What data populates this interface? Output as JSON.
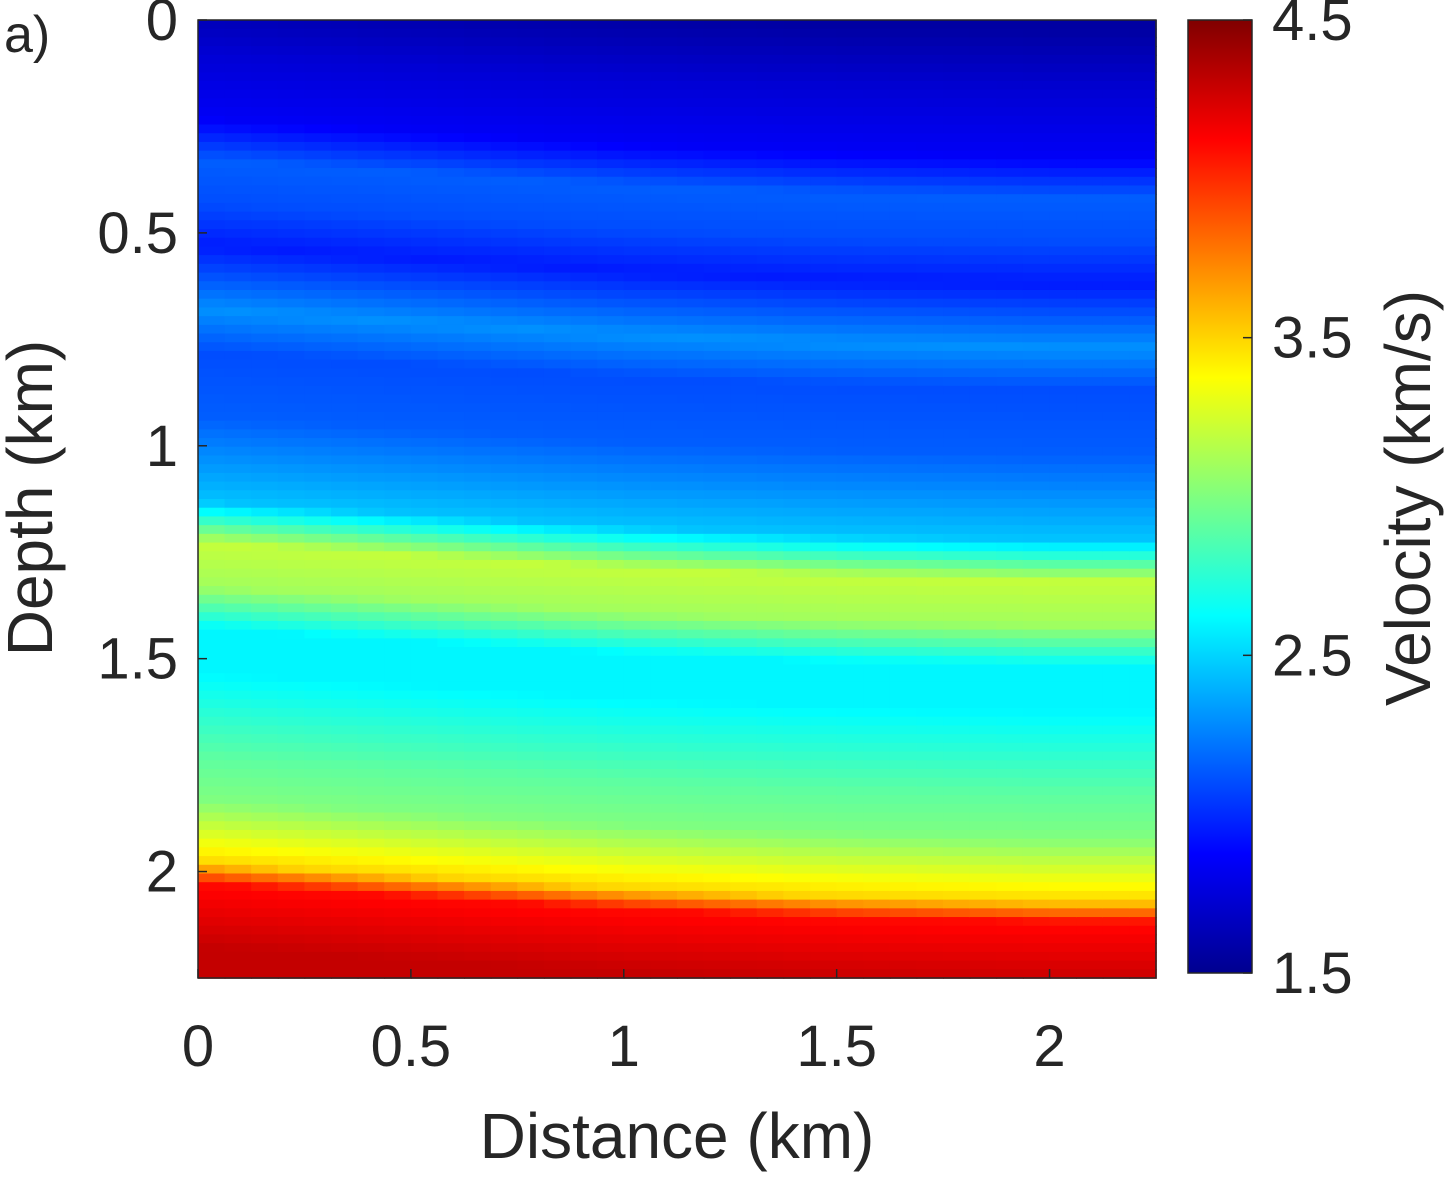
{
  "panel_label": "a)",
  "chart_data": {
    "type": "heatmap",
    "title": "",
    "xlabel": "Distance (km)",
    "ylabel": "Depth (km)",
    "xlim": [
      0,
      2.25
    ],
    "ylim": [
      0,
      2.25
    ],
    "y_reversed": true,
    "x_ticks": [
      "0",
      "0.5",
      "1",
      "1.5",
      "2"
    ],
    "y_ticks": [
      "0",
      "0.5",
      "1",
      "1.5",
      "2"
    ],
    "colorbar": {
      "label": "Velocity (km/s)",
      "range": [
        1.5,
        4.5
      ],
      "ticks": [
        "1.5",
        "2.5",
        "3.5",
        "4.5"
      ],
      "colormap": "jet",
      "placement": "right"
    },
    "velocity_profile_km_s": {
      "depth": [
        0.0,
        0.15,
        0.3,
        0.4,
        0.5,
        0.6,
        0.75,
        0.85,
        1.0,
        1.2,
        1.3,
        1.4,
        1.5,
        1.6,
        1.7,
        1.8,
        1.9,
        2.05,
        2.1,
        2.25
      ],
      "velocity": [
        1.6,
        1.75,
        1.85,
        2.15,
        2.1,
        1.95,
        2.3,
        2.1,
        2.15,
        2.45,
        3.2,
        3.1,
        2.6,
        2.6,
        2.75,
        2.9,
        3.0,
        3.5,
        4.1,
        4.3
      ]
    },
    "layer_tilt_depth_km": {
      "distance": [
        0,
        0.5,
        1.0,
        1.5,
        2.0,
        2.25
      ],
      "shift": [
        -0.07,
        -0.04,
        -0.01,
        0.01,
        0.02,
        0.02
      ]
    }
  }
}
